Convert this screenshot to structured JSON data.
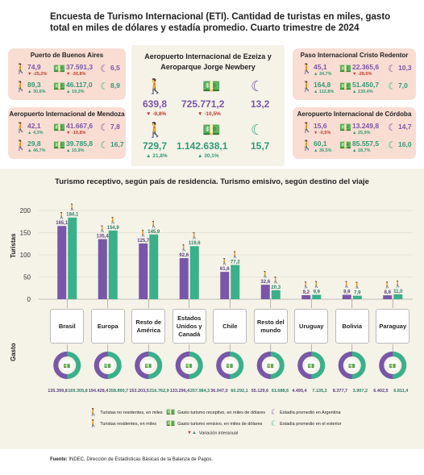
{
  "title": "Encuesta de Turismo Internacional (ETI). Cantidad de turistas en miles, gasto total en miles de dólares y estadía promedio. Cuarto trimestre de 2024",
  "colors": {
    "receptive": "#7a56a8",
    "emissive": "#3ab08a",
    "card_bg": "#f9ddd2",
    "panel_bg": "#f5f2e8",
    "down": "#c0392b",
    "up": "#2f9a78"
  },
  "icons": {
    "tourist": "walking-person-icon",
    "spending": "money-icon",
    "stay": "moon-icon"
  },
  "cards": [
    {
      "name": "Puerto de Buenos Aires",
      "rec": {
        "tur": "74,9",
        "tur_var": "▼ -25,2%",
        "gas": "37.591,3",
        "gas_var": "▼ -30,8%",
        "est": "6,5"
      },
      "emi": {
        "tur": "89,3",
        "tur_var": "▲ 30,6%",
        "gas": "46.117,0",
        "gas_var": "▲ 19,2%",
        "est": "8,9"
      }
    },
    {
      "name": "Aeropuerto Internacional de Mendoza",
      "rec": {
        "tur": "42,1",
        "tur_var": "▲ 4,3%",
        "gas": "41.667,6",
        "gas_var": "▼ -10,8%",
        "est": "7,8"
      },
      "emi": {
        "tur": "29,8",
        "tur_var": "▲ 46,7%",
        "gas": "39.785,8",
        "gas_var": "▲ 15,9%",
        "est": "16,7"
      }
    },
    {
      "name": "Paso Internacional Cristo Redentor",
      "rec": {
        "tur": "45,1",
        "tur_var": "▲ 34,7%",
        "gas": "22.365,6",
        "gas_var": "▼ -28,6%",
        "est": "10,3"
      },
      "emi": {
        "tur": "164,8",
        "tur_var": "▲ 112,8%",
        "gas": "51.450,7",
        "gas_var": "▲ 130,4%",
        "est": "7,0"
      }
    },
    {
      "name": "Aeropuerto Internacional de Córdoba",
      "rec": {
        "tur": "15,6",
        "tur_var": "▼ -0,5%",
        "gas": "13.249,8",
        "gas_var": "▲ 25,9%",
        "est": "14,7"
      },
      "emi": {
        "tur": "60,1",
        "tur_var": "▲ 36,5%",
        "gas": "85.557,5",
        "gas_var": "▲ 18,7%",
        "est": "16,0"
      }
    }
  ],
  "center": {
    "name": "Aeropuerto Internacional de Ezeiza y Aeroparque Jorge Newbery",
    "rec": {
      "tur": "639,8",
      "tur_var": "▼ -9,8%",
      "gas": "725.771,2",
      "gas_var": "▼ -10,5%",
      "est": "13,2"
    },
    "emi": {
      "tur": "729,7",
      "tur_var": "▲ 21,8%",
      "gas": "1.142.638,1",
      "gas_var": "▲ 30,1%",
      "est": "15,7"
    }
  },
  "chart_data": {
    "type": "bar",
    "title": "Turismo receptivo, según país de residencia. Turismo emisivo, según destino del viaje",
    "ylabel": "Turistas",
    "ylabel2": "Gasto",
    "ylim": [
      0,
      200
    ],
    "yticks": [
      "200",
      "150",
      "100",
      "50",
      "0"
    ],
    "categories": [
      "Brasil",
      "Europa",
      "Resto de América",
      "Estados Unidos y Canadá",
      "Chile",
      "Resto del mundo",
      "Uruguay",
      "Bolivia",
      "Paraguay"
    ],
    "series": [
      {
        "name": "Turistas no residentes, en miles",
        "values": [
          165.1,
          135.4,
          125.7,
          92.6,
          61.6,
          32.6,
          9.2,
          9.9,
          8.8
        ],
        "labels": [
          "165,1",
          "135,4",
          "125,7",
          "92,6",
          "61,6",
          "32,6",
          "9,2",
          "9,9",
          "8,8"
        ]
      },
      {
        "name": "Turistas residentes, en miles",
        "values": [
          184.1,
          154.9,
          145.9,
          119.6,
          77.2,
          20.3,
          9.9,
          7.9,
          11.0
        ],
        "labels": [
          "184,1",
          "154,9",
          "145,9",
          "119,6",
          "77,2",
          "20,3",
          "9,9",
          "7,9",
          "11,0"
        ]
      }
    ],
    "gasto": {
      "receptive": [
        "135.399,8",
        "194.428,4",
        "153.203,5",
        "133.296,4",
        "36.047,0",
        "55.129,6",
        "4.495,4",
        "8.377,7",
        "6.402,5"
      ],
      "emissive": [
        "169.305,8",
        "358.890,7",
        "216.762,9",
        "257.984,3",
        "60.292,1",
        "61.688,6",
        "7.135,3",
        "3.907,2",
        "6.811,4"
      ]
    }
  },
  "legend": {
    "l1": "Turistas no residentes, en miles",
    "l2": "Gasto turismo receptivo, en miles de dólares",
    "l3": "Estadía promedio en Argentina",
    "l4": "Turistas residentes, en miles",
    "l5": "Gasto turismo emisivo, en miles de dólares",
    "l6": "Estadía promedio en el exterior",
    "l7": "Variación interanual"
  },
  "source_label": "Fuente:",
  "source_text": "INDEC, Dirección de Estadísticas Básicas de la Balanza de Pagos."
}
